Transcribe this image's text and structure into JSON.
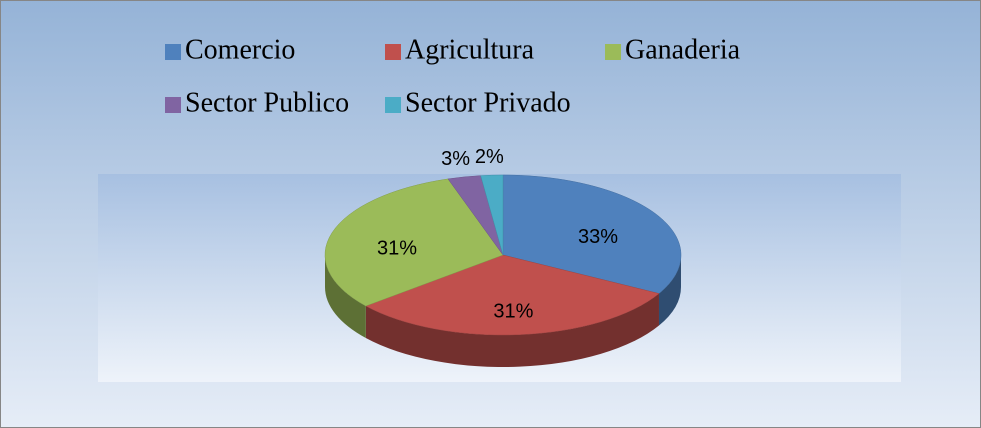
{
  "chart_data": {
    "type": "pie",
    "categories": [
      "Comercio",
      "Agricultura",
      "Ganaderia",
      "Sector Publico",
      "Sector Privado"
    ],
    "values": [
      33,
      31,
      31,
      3,
      2
    ],
    "value_labels": [
      "33%",
      "31%",
      "31%",
      "3%",
      "2%"
    ],
    "colors": [
      "#4f81bd",
      "#c0504d",
      "#9bbb59",
      "#8064a2",
      "#4bacc6"
    ],
    "legend": "top"
  }
}
